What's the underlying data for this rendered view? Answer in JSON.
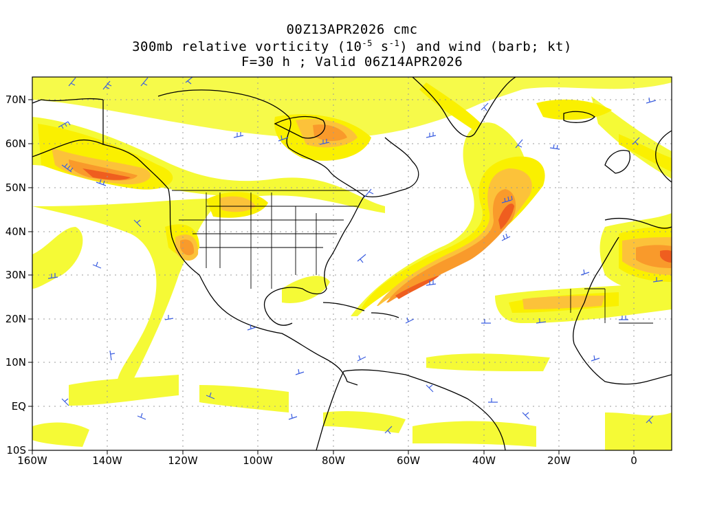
{
  "title": {
    "line1": "00Z13APR2026 cmc",
    "line2_prefix": "300mb relative vorticity (10",
    "line2_exp1": "-5",
    "line2_mid": " s",
    "line2_exp2": "-1",
    "line2_suffix": ") and wind (barb; kt)",
    "line3": "F=30 h ; Valid 06Z14APR2026"
  },
  "axes": {
    "lat_labels": [
      "70N",
      "60N",
      "50N",
      "40N",
      "30N",
      "20N",
      "10N",
      "EQ",
      "10S"
    ],
    "lon_labels": [
      "160W",
      "140W",
      "120W",
      "100W",
      "80W",
      "60W",
      "40W",
      "20W",
      "0"
    ],
    "lat_range": [
      -10,
      75
    ],
    "lon_range": [
      -160,
      10
    ]
  },
  "colors": {
    "shade_light": "#f5fa36",
    "shade_yellow": "#faf000",
    "shade_orange_light": "#fcc23a",
    "shade_orange": "#f99a2b",
    "shade_red": "#ef5e1f",
    "barb": "#3a5de0",
    "grid": "#999999",
    "coast": "#000000"
  },
  "grid": true
}
